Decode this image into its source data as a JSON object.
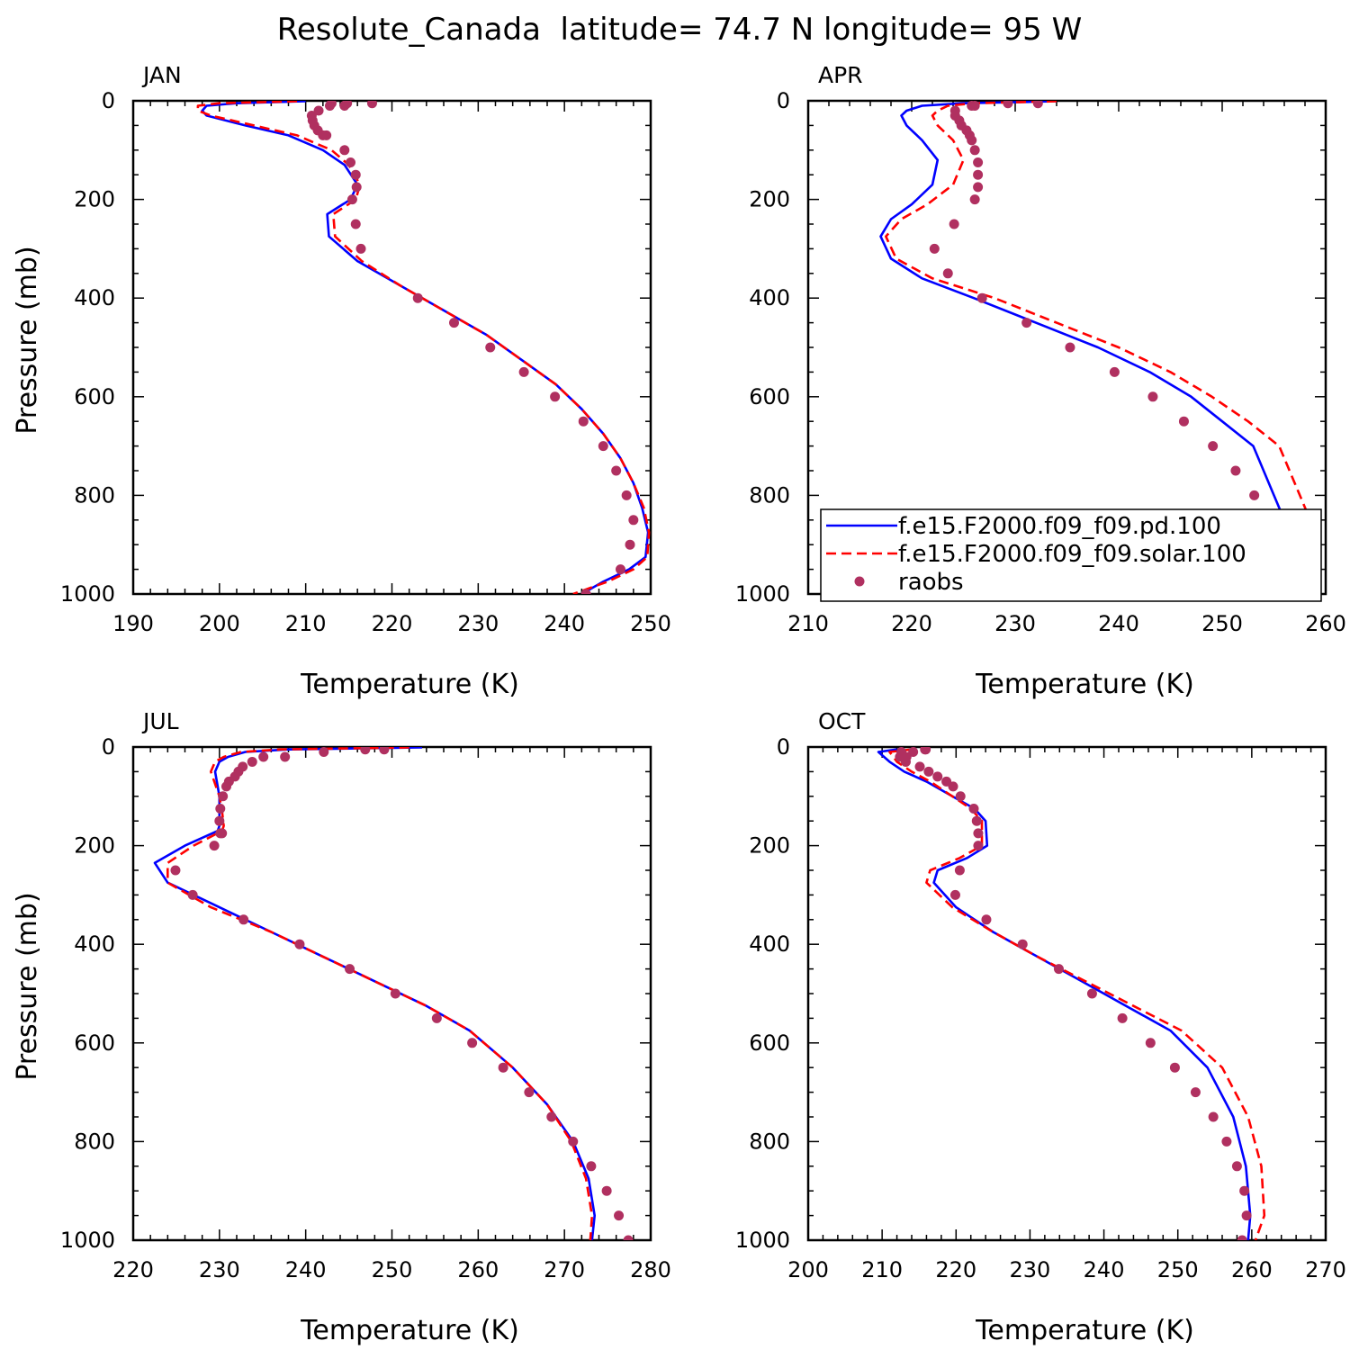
{
  "figure_title": "Resolute_Canada  latitude= 74.7 N longitude= 95 W",
  "colors": {
    "pd": "#0000ff",
    "solar": "#ff0000",
    "raobs": "#b03060"
  },
  "legend": {
    "entries": [
      {
        "label": "f.e15.F2000.f09_f09.pd.100",
        "style": "solid",
        "color": "#0000ff"
      },
      {
        "label": "f.e15.F2000.f09_f09.solar.100",
        "style": "dashed",
        "color": "#ff0000"
      },
      {
        "label": "raobs",
        "style": "marker",
        "color": "#b03060"
      }
    ]
  },
  "chart_data": [
    {
      "type": "line",
      "panel": "JAN",
      "xlabel": "Temperature (K)",
      "ylabel": "Pressure (mb)",
      "xlim": [
        190,
        250
      ],
      "ylim": [
        1000,
        0
      ],
      "xticks": [
        190,
        200,
        210,
        220,
        230,
        240,
        250
      ],
      "yticks": [
        0,
        200,
        400,
        600,
        800,
        1000
      ],
      "show_legend": false,
      "series": [
        {
          "name": "f.e15.F2000.f09_f09.pd.100",
          "style": "solid",
          "x": [
            210,
            202,
            198.5,
            198,
            198.5,
            203,
            208,
            212,
            214.5,
            216,
            215.2,
            212.5,
            212.7,
            216,
            221,
            226,
            231,
            235,
            239,
            242,
            244.5,
            246.5,
            248,
            249,
            249.7,
            249.4,
            247.5,
            244.5,
            242
          ],
          "y": [
            1,
            5,
            10,
            20,
            30,
            50,
            70,
            100,
            130,
            170,
            200,
            230,
            275,
            325,
            375,
            425,
            475,
            525,
            575,
            625,
            675,
            725,
            775,
            825,
            875,
            925,
            950,
            975,
            1000
          ]
        },
        {
          "name": "f.e15.F2000.f09_f09.solar.100",
          "style": "dashed",
          "x": [
            209,
            200,
            197.5,
            197.5,
            199,
            204,
            209,
            213,
            215,
            216.3,
            215.8,
            213.2,
            213.4,
            216.5,
            221,
            226,
            231,
            235,
            239,
            242,
            244.5,
            246.5,
            248,
            249.2,
            249.8,
            249.6,
            248,
            245,
            241
          ],
          "y": [
            1,
            5,
            10,
            20,
            30,
            50,
            70,
            100,
            130,
            170,
            200,
            230,
            275,
            325,
            375,
            425,
            475,
            525,
            575,
            625,
            675,
            725,
            775,
            825,
            875,
            925,
            950,
            975,
            1000
          ]
        },
        {
          "name": "raobs",
          "style": "marker",
          "x": [
            217.7,
            214.8,
            213,
            212.8,
            214.5,
            211.5,
            210.7,
            210.8,
            211,
            211.4,
            212,
            212.4,
            214.5,
            215.2,
            215.8,
            215.9,
            215.4,
            215.8,
            216.4,
            223,
            227.2,
            231.4,
            235.3,
            238.9,
            242.2,
            244.5,
            246,
            247.2,
            248,
            247.6,
            246.5,
            242.5
          ],
          "y": [
            5,
            5,
            5,
            10,
            10,
            20,
            30,
            40,
            50,
            60,
            70,
            70,
            100,
            125,
            150,
            175,
            200,
            250,
            300,
            400,
            450,
            500,
            550,
            600,
            650,
            700,
            750,
            800,
            850,
            900,
            950,
            1000
          ]
        }
      ]
    },
    {
      "type": "line",
      "panel": "APR",
      "xlabel": "Temperature (K)",
      "ylabel": "Pressure (mb)",
      "xlim": [
        210,
        260
      ],
      "ylim": [
        1000,
        0
      ],
      "xticks": [
        210,
        220,
        230,
        240,
        250,
        260
      ],
      "yticks": [
        0,
        200,
        400,
        600,
        800,
        1000
      ],
      "show_legend": true,
      "series": [
        {
          "name": "f.e15.F2000.f09_f09.pd.100",
          "style": "solid",
          "x": [
            234,
            225,
            221,
            219.5,
            219,
            219.5,
            221,
            222.5,
            222,
            220,
            218,
            217,
            218,
            221,
            226,
            232,
            238,
            243,
            247,
            250,
            253,
            255,
            256,
            256.3,
            255.8,
            254.3
          ],
          "y": [
            1,
            5,
            10,
            20,
            30,
            50,
            80,
            120,
            170,
            210,
            240,
            275,
            320,
            360,
            400,
            450,
            500,
            550,
            600,
            650,
            700,
            800,
            850,
            900,
            950,
            1000
          ]
        },
        {
          "name": "f.e15.F2000.f09_f09.solar.100",
          "style": "dashed",
          "x": [
            234,
            226,
            223.5,
            222.5,
            222,
            222.5,
            224,
            225,
            224,
            221.5,
            219,
            217.5,
            218.5,
            222,
            228,
            234,
            240,
            245,
            249,
            252.5,
            255.5,
            257.5,
            258.5,
            258.7,
            257.6,
            254.5
          ],
          "y": [
            1,
            5,
            10,
            20,
            30,
            50,
            80,
            120,
            170,
            210,
            240,
            275,
            320,
            360,
            400,
            450,
            500,
            550,
            600,
            650,
            700,
            800,
            850,
            900,
            950,
            1000
          ]
        },
        {
          "name": "raobs",
          "style": "marker",
          "x": [
            232.2,
            229.3,
            226.1,
            225.8,
            224.2,
            224.2,
            224.6,
            224.8,
            225.3,
            225.6,
            225.8,
            226.1,
            226.4,
            226.4,
            226.4,
            226.1,
            224.1,
            222.2,
            223.5,
            226.8,
            231.1,
            235.3,
            239.6,
            243.3,
            246.3,
            249.1,
            251.3,
            253.1,
            253.9,
            254.1,
            253.7,
            251
          ],
          "y": [
            5,
            5,
            10,
            10,
            20,
            30,
            40,
            50,
            60,
            70,
            80,
            100,
            125,
            150,
            175,
            200,
            250,
            300,
            350,
            400,
            450,
            500,
            550,
            600,
            650,
            700,
            750,
            800,
            850,
            900,
            950,
            1000
          ]
        }
      ]
    },
    {
      "type": "line",
      "panel": "JUL",
      "xlabel": "Temperature (K)",
      "ylabel": "Pressure (mb)",
      "xlim": [
        220,
        280
      ],
      "ylim": [
        1000,
        0
      ],
      "xticks": [
        220,
        230,
        240,
        250,
        260,
        270,
        280
      ],
      "yticks": [
        0,
        200,
        400,
        600,
        800,
        1000
      ],
      "show_legend": false,
      "series": [
        {
          "name": "f.e15.F2000.f09_f09.pd.100",
          "style": "solid",
          "x": [
            253.5,
            238,
            233,
            231,
            230,
            229.5,
            230,
            230,
            230,
            229.8,
            226,
            222.5,
            224,
            230,
            236,
            242,
            248,
            254,
            259,
            264,
            268,
            271,
            272.8,
            273.5,
            273.2
          ],
          "y": [
            1,
            5,
            10,
            20,
            30,
            50,
            100,
            130,
            160,
            170,
            200,
            235,
            275,
            325,
            375,
            425,
            475,
            525,
            575,
            650,
            725,
            800,
            875,
            950,
            1000
          ]
        },
        {
          "name": "f.e15.F2000.f09_f09.solar.100",
          "style": "dashed",
          "x": [
            252,
            237,
            232.5,
            230.5,
            229.5,
            229,
            230,
            230.3,
            230.5,
            230.3,
            227,
            224,
            224,
            229,
            236,
            242,
            248,
            254,
            259,
            264,
            268,
            270.8,
            272.5,
            273.2,
            273
          ],
          "y": [
            1,
            5,
            10,
            20,
            30,
            50,
            100,
            130,
            160,
            170,
            200,
            235,
            275,
            325,
            375,
            425,
            475,
            525,
            575,
            650,
            725,
            800,
            875,
            950,
            1000
          ]
        },
        {
          "name": "raobs",
          "style": "marker",
          "x": [
            249.1,
            246.9,
            242.1,
            237.6,
            235.1,
            233.8,
            232.7,
            232.2,
            231.8,
            231.1,
            230.8,
            230.4,
            230.1,
            230,
            230.1,
            230.3,
            229.4,
            224.9,
            226.9,
            232.8,
            239.3,
            245.1,
            250.4,
            255.2,
            259.3,
            262.9,
            265.9,
            268.5,
            271,
            273.1,
            274.9,
            276.3,
            277.4
          ],
          "y": [
            5,
            5,
            10,
            20,
            20,
            30,
            40,
            50,
            60,
            70,
            80,
            100,
            125,
            150,
            175,
            175,
            200,
            250,
            300,
            350,
            400,
            450,
            500,
            550,
            600,
            650,
            700,
            750,
            800,
            850,
            900,
            950,
            1000
          ]
        }
      ]
    },
    {
      "type": "line",
      "panel": "OCT",
      "xlabel": "Temperature (K)",
      "ylabel": "Pressure (mb)",
      "xlim": [
        200,
        270
      ],
      "ylim": [
        1000,
        0
      ],
      "xticks": [
        200,
        210,
        220,
        230,
        240,
        250,
        260,
        270
      ],
      "yticks": [
        0,
        200,
        400,
        600,
        800,
        1000
      ],
      "show_legend": false,
      "series": [
        {
          "name": "f.e15.F2000.f09_f09.pd.100",
          "style": "solid",
          "x": [
            212,
            209.5,
            211,
            213,
            216,
            219.5,
            222.5,
            224,
            224.2,
            221.5,
            217.5,
            217,
            220,
            225,
            231,
            237,
            243,
            249,
            254,
            257.5,
            259.2,
            259.8,
            259.5
          ],
          "y": [
            5,
            10,
            30,
            50,
            70,
            100,
            125,
            150,
            200,
            225,
            250,
            275,
            325,
            375,
            425,
            475,
            525,
            575,
            650,
            750,
            850,
            950,
            1000
          ]
        },
        {
          "name": "f.e15.F2000.f09_f09.solar.100",
          "style": "dashed",
          "x": [
            214,
            211,
            212,
            214,
            216.5,
            219.5,
            222,
            223.5,
            223.5,
            220.5,
            216.5,
            216,
            219.5,
            225,
            231,
            237.5,
            244,
            250.5,
            256,
            259.5,
            261.3,
            261.7,
            260.5
          ],
          "y": [
            5,
            10,
            30,
            50,
            70,
            100,
            125,
            150,
            200,
            225,
            250,
            275,
            325,
            375,
            425,
            475,
            525,
            575,
            650,
            750,
            850,
            950,
            1000
          ]
        },
        {
          "name": "raobs",
          "style": "marker",
          "x": [
            215.8,
            215.9,
            214.2,
            212.6,
            212.4,
            213.3,
            213.2,
            215.1,
            216.3,
            217.5,
            218.7,
            219.6,
            220.6,
            222.4,
            222.8,
            223,
            223,
            220.5,
            219.9,
            224.1,
            229,
            233.9,
            238.4,
            242.5,
            246.3,
            249.6,
            252.4,
            254.8,
            256.6,
            258,
            259,
            259.3,
            258.7
          ],
          "y": [
            5,
            5,
            10,
            10,
            20,
            20,
            30,
            40,
            50,
            60,
            70,
            80,
            100,
            125,
            150,
            175,
            200,
            250,
            300,
            350,
            400,
            450,
            500,
            550,
            600,
            650,
            700,
            750,
            800,
            850,
            900,
            950,
            1000
          ]
        }
      ]
    }
  ]
}
